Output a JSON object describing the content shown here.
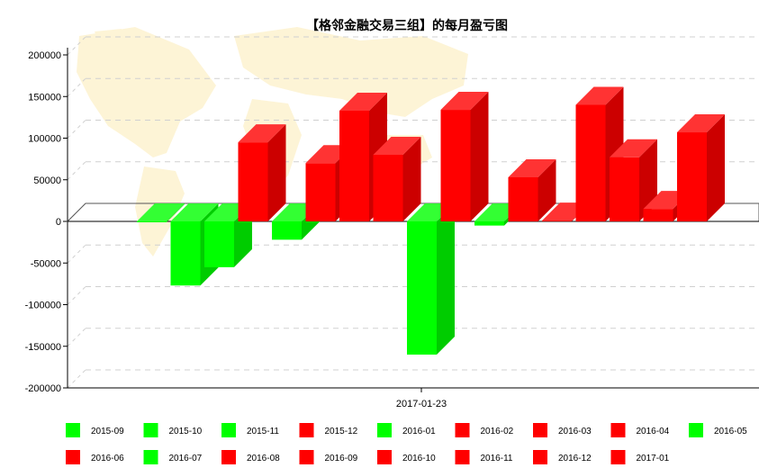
{
  "chart_data": {
    "type": "bar",
    "title": "【格邻金融交易三组】的每月盈亏图",
    "xlabel": "",
    "ylabel": "",
    "x_category": "2017-01-23",
    "ylim": [
      -200000,
      200000
    ],
    "yticks": [
      200000,
      150000,
      100000,
      50000,
      0,
      -50000,
      -100000,
      -150000,
      -200000
    ],
    "grid": true,
    "legend_position": "bottom",
    "colors": {
      "positive": "#ff0000",
      "negative": "#00ff00"
    },
    "series": [
      {
        "name": "2015-09",
        "value": -1000
      },
      {
        "name": "2015-10",
        "value": -77000
      },
      {
        "name": "2015-11",
        "value": -55000
      },
      {
        "name": "2015-12",
        "value": 95000
      },
      {
        "name": "2016-01",
        "value": -22000
      },
      {
        "name": "2016-02",
        "value": 70000
      },
      {
        "name": "2016-03",
        "value": 133000
      },
      {
        "name": "2016-04",
        "value": 80000
      },
      {
        "name": "2016-05",
        "value": -160000
      },
      {
        "name": "2016-06",
        "value": 134000
      },
      {
        "name": "2016-07",
        "value": -5000
      },
      {
        "name": "2016-08",
        "value": 53000
      },
      {
        "name": "2016-09",
        "value": 1000
      },
      {
        "name": "2016-10",
        "value": 140000
      },
      {
        "name": "2016-11",
        "value": 77000
      },
      {
        "name": "2016-12",
        "value": 15000
      },
      {
        "name": "2017-01",
        "value": 107000
      }
    ]
  }
}
